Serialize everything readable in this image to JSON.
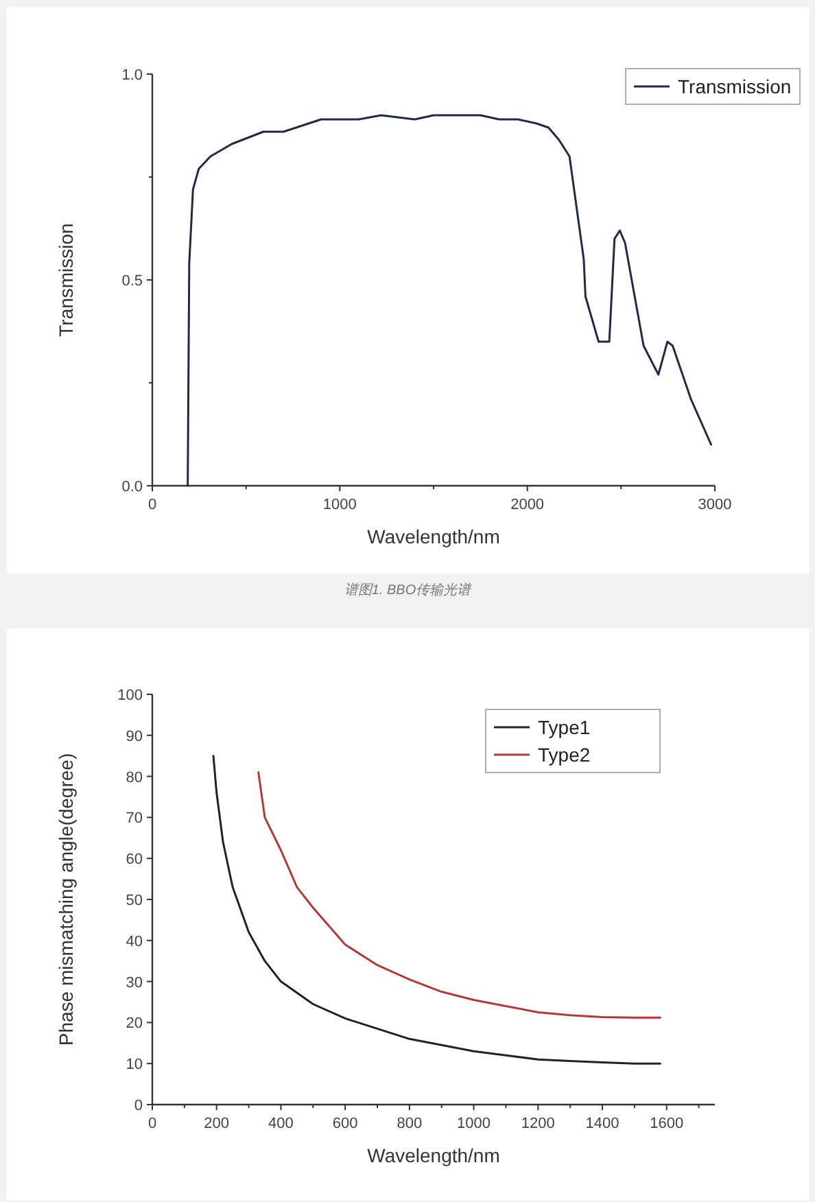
{
  "chart_data": [
    {
      "type": "line",
      "xlabel": "Wavelength/nm",
      "ylabel": "Transmission",
      "xlim": [
        0,
        3000
      ],
      "ylim": [
        0,
        1
      ],
      "xticks": [
        0,
        {
          "value": 500,
          "label": null
        },
        1000,
        {
          "value": 1500,
          "label": null
        },
        2000,
        {
          "value": 2500,
          "label": null
        },
        3000
      ],
      "yticks": [
        {
          "value": 0,
          "label": "0.0"
        },
        {
          "value": 0.25,
          "label": null
        },
        0.5,
        {
          "value": 0.75,
          "label": null
        },
        {
          "value": 1,
          "label": "1.0"
        }
      ],
      "legend": "top right",
      "annotations": [
        "谱图1. BBO传输光谱"
      ],
      "series": [
        {
          "name": "Transmission",
          "color": "#1f2a44",
          "x": [
            189,
            197,
            217,
            248,
            310,
            423,
            592,
            700,
            900,
            1000,
            1100,
            1220,
            1400,
            1500,
            1750,
            1850,
            1950,
            2050,
            2113,
            2169,
            2225,
            2301,
            2310,
            2380,
            2437,
            2465,
            2493,
            2521,
            2620,
            2699,
            2747,
            2775,
            2873,
            2980
          ],
          "values": [
            0,
            0.54,
            0.72,
            0.77,
            0.8,
            0.83,
            0.86,
            0.86,
            0.89,
            0.89,
            0.89,
            0.9,
            0.89,
            0.9,
            0.9,
            0.89,
            0.89,
            0.88,
            0.87,
            0.84,
            0.8,
            0.55,
            0.46,
            0.35,
            0.35,
            0.6,
            0.62,
            0.59,
            0.34,
            0.27,
            0.35,
            0.34,
            0.21,
            0.1
          ]
        }
      ]
    },
    {
      "type": "line",
      "xlabel": "Wavelength/nm",
      "ylabel": "Phase mismatching angle(degree)",
      "xlim": [
        0,
        1750
      ],
      "ylim": [
        0,
        100
      ],
      "xticks": [
        0,
        {
          "value": 100,
          "label": null
        },
        200,
        {
          "value": 300,
          "label": null
        },
        400,
        {
          "value": 500,
          "label": null
        },
        600,
        {
          "value": 700,
          "label": null
        },
        800,
        {
          "value": 900,
          "label": null
        },
        1000,
        {
          "value": 1100,
          "label": null
        },
        1200,
        {
          "value": 1300,
          "label": null
        },
        1400,
        {
          "value": 1500,
          "label": null
        },
        1600,
        {
          "value": 1700,
          "label": null
        }
      ],
      "yticks": [
        0,
        10,
        20,
        30,
        40,
        50,
        60,
        70,
        80,
        90,
        100
      ],
      "legend": "top right",
      "series": [
        {
          "name": "Type1",
          "color": "#222222",
          "x": [
            190,
            200,
            220,
            250,
            300,
            350,
            400,
            500,
            600,
            700,
            800,
            900,
            1000,
            1100,
            1200,
            1300,
            1400,
            1500,
            1580
          ],
          "values": [
            85,
            76,
            64,
            53,
            42,
            35,
            30,
            24.5,
            21,
            18.5,
            16,
            14.5,
            13,
            12,
            11,
            10.6,
            10.3,
            10,
            10
          ]
        },
        {
          "name": "Type2",
          "color": "#b03a3a",
          "x": [
            330,
            350,
            400,
            450,
            500,
            600,
            700,
            800,
            900,
            1000,
            1100,
            1200,
            1300,
            1400,
            1500,
            1580
          ],
          "values": [
            81,
            70,
            62,
            53,
            48,
            39,
            34,
            30.5,
            27.5,
            25.5,
            24,
            22.5,
            21.8,
            21.3,
            21.2,
            21.2
          ]
        }
      ]
    }
  ]
}
